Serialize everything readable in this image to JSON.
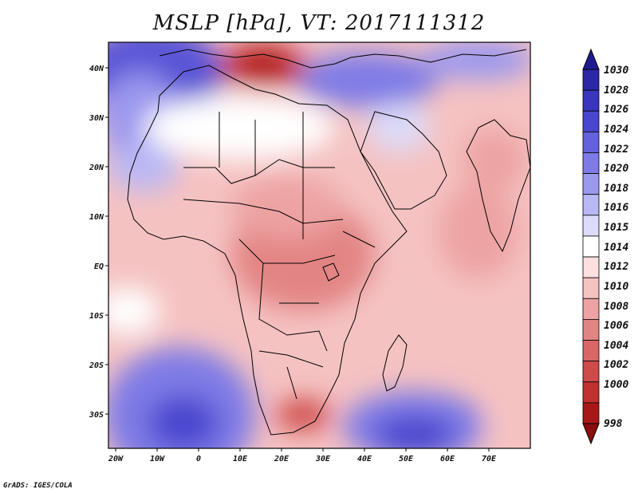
{
  "title": "MSLP [hPa], VT: 2017111312",
  "credit": "GrADS: IGES/COLA",
  "latitude_labels": [
    "40N",
    "30N",
    "20N",
    "10N",
    "EQ",
    "10S",
    "20S",
    "30S"
  ],
  "longitude_labels": [
    "20W",
    "10W",
    "0",
    "10E",
    "20E",
    "30E",
    "40E",
    "50E",
    "60E",
    "70E"
  ],
  "colorbar": {
    "levels": [
      "1030",
      "1028",
      "1026",
      "1024",
      "1022",
      "1020",
      "1018",
      "1016",
      "1015",
      "1014",
      "1012",
      "1010",
      "1008",
      "1006",
      "1004",
      "1002",
      "1000",
      "998"
    ],
    "colors": [
      "#1f1a8f",
      "#2b27a6",
      "#3a35bd",
      "#4b46cf",
      "#6560dc",
      "#7f7be6",
      "#9b98ee",
      "#bab8f4",
      "#dcdcfa",
      "#ffffff",
      "#fbe0e0",
      "#f5c2c2",
      "#eda3a3",
      "#e38484",
      "#d96767",
      "#cf4a4a",
      "#c23030",
      "#a81818",
      "#8a0e0e"
    ]
  },
  "colors": {
    "high_pressure": "#4b46cf",
    "low_pressure": "#cf4a4a",
    "border": "#000000"
  }
}
